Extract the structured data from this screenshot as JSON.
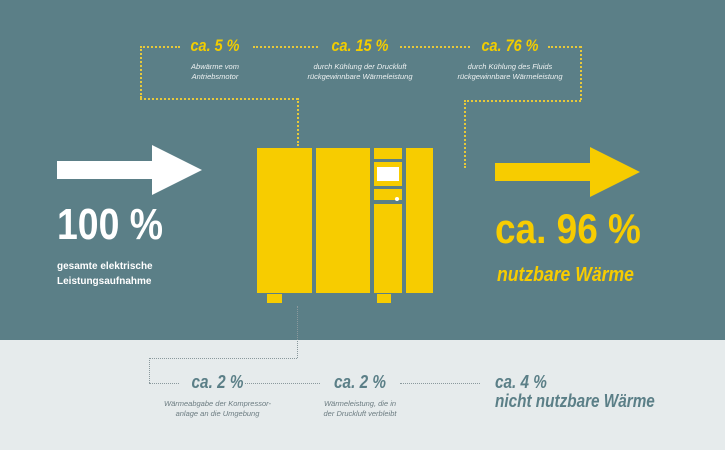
{
  "colors": {
    "background_top": "#5b7f87",
    "background_bottom": "#e6ebec",
    "accent": "#f7cc00",
    "text_light": "#ffffff"
  },
  "recovered": [
    {
      "value": "ca. 5 %",
      "desc": [
        "Abwärme vom",
        "Antriebsmotor"
      ]
    },
    {
      "value": "ca. 15 %",
      "desc": [
        "durch Kühlung der  Druckluft",
        "rückgewinnbare Wärmeleistung"
      ]
    },
    {
      "value": "ca. 76 %",
      "desc": [
        "durch Kühlung des Fluids",
        "rückgewinnbare Wärmeleistung"
      ]
    }
  ],
  "input": {
    "value": "100 %",
    "label": [
      "gesamte elektrische",
      "Leistungsaufnahme"
    ],
    "icon": "arrow-right-icon"
  },
  "output": {
    "value": "ca. 96 %",
    "label": "nutzbare Wärme",
    "icon": "arrow-right-icon"
  },
  "losses": [
    {
      "value": "ca. 2 %",
      "desc": [
        "Wärmeabgabe der Kompressor-",
        "anlage an die Umgebung"
      ]
    },
    {
      "value": "ca. 2 %",
      "desc": [
        "Wärmeleistung, die in",
        "der Druckluft verbleibt"
      ]
    }
  ],
  "loss_total": {
    "value": "ca. 4 %",
    "label": "nicht nutzbare Wärme"
  }
}
